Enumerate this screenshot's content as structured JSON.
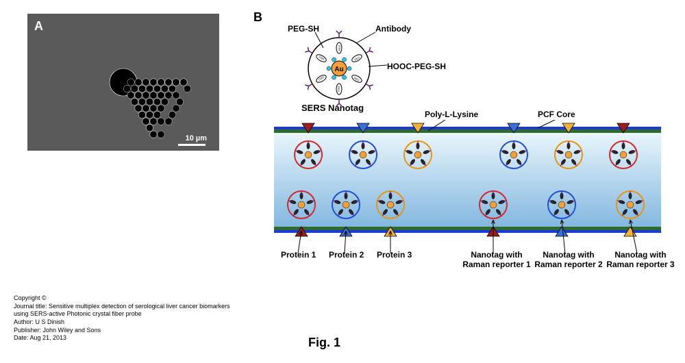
{
  "panelA": {
    "label": "A",
    "scalebar": "10 µm",
    "sem": {
      "bg": "#5a5a5a",
      "outerR": 95,
      "coreR": 20,
      "holeR": 5.2,
      "holeFill": "#000000",
      "holeStroke": "#ffffff",
      "rings": 7,
      "hexSpacing": 11
    }
  },
  "panelB": {
    "label": "B",
    "nanotag": {
      "title": "SERS Nanotag",
      "labels": {
        "pegsh": "PEG-SH",
        "antibody": "Antibody",
        "hoocpegsh": "HOOC-PEG-SH"
      },
      "au": {
        "label": "Au",
        "fill": "#f2a03a",
        "textColor": "#000000"
      },
      "circleStroke": "#000000",
      "reporterFill": "#2ec8e8"
    },
    "channel": {
      "top_labels": {
        "polyl": "Poly-L-Lysine",
        "pcfcore": "PCF Core"
      },
      "core_color": "#2e6b2a",
      "pll_color": "#1a3bd6",
      "gradient_top": "#eaf6fb",
      "gradient_bottom": "#82b7e0",
      "proteins": [
        {
          "name": "Protein 1",
          "color": "#9c1e1e"
        },
        {
          "name": "Protein 2",
          "color": "#3b6fd6"
        },
        {
          "name": "Protein 3",
          "color": "#f2b23a"
        }
      ],
      "nanotags": [
        {
          "name": "Nanotag with\nRaman reporter 1",
          "ring": "#d62728"
        },
        {
          "name": "Nanotag with\nRaman reporter 2",
          "ring": "#1f4ed8"
        },
        {
          "name": "Nanotag with\nRaman reporter 3",
          "ring": "#e8950c"
        }
      ]
    }
  },
  "figLabel": "Fig. 1",
  "copyright": {
    "line1": "Copyright ©",
    "line2": "Journal title: Sensitive multiplex detection of serological liver cancer biomarkers using SERS-active Photonic crystal fiber probe",
    "line3": "Author: U S Dinish",
    "line4": "Publisher: John Wiley and Sons",
    "line5": "Date: Aug 21, 2013"
  }
}
